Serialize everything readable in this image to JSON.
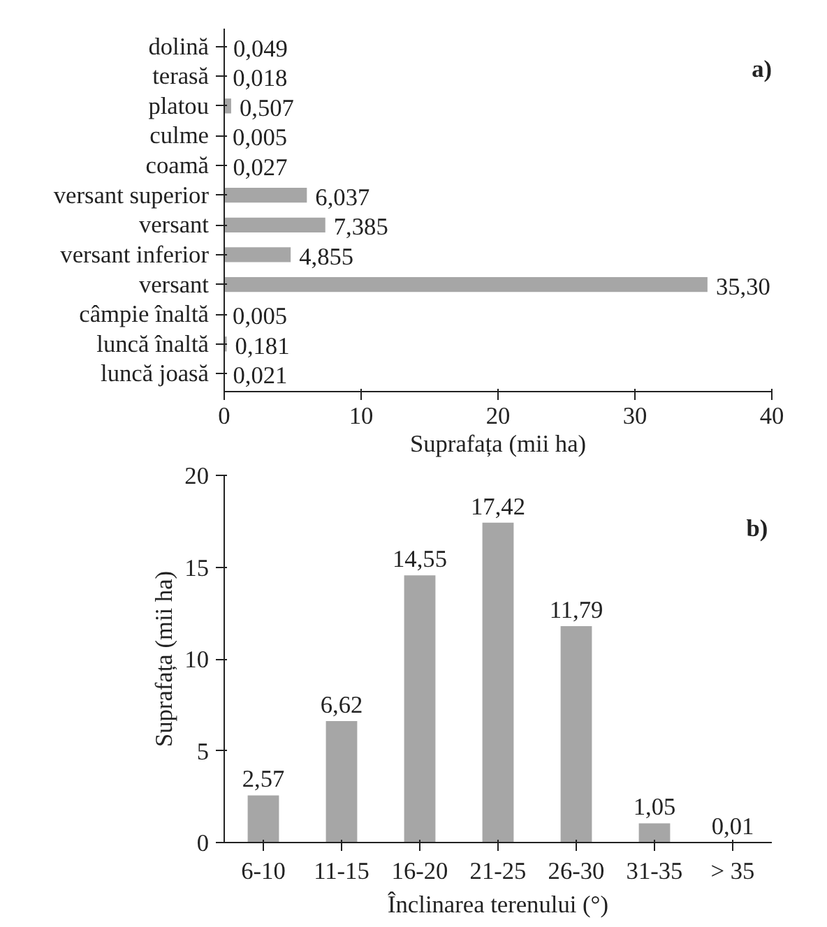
{
  "chart_data": [
    {
      "type": "bar",
      "orientation": "horizontal",
      "xlabel": "Suprafața (mii ha)",
      "annotations": [
        "a)"
      ],
      "categories": [
        "dolină",
        "terasă",
        "platou",
        "culme",
        "coamă",
        "versant superior",
        "versant",
        "versant inferior",
        "versant",
        "câmpie înaltă",
        "luncă înaltă",
        "luncă joasă"
      ],
      "values": [
        0.049,
        0.018,
        0.507,
        0.005,
        0.027,
        6.037,
        7.385,
        4.855,
        35.3,
        0.005,
        0.181,
        0.021
      ],
      "value_labels": [
        "0,049",
        "0,018",
        "0,507",
        "0,005",
        "0,027",
        "6,037",
        "7,385",
        "4,855",
        "35,30",
        "0,005",
        "0,181",
        "0,021"
      ],
      "color": "#a6a6a6",
      "xlim": [
        0,
        40
      ],
      "xticks": [
        0,
        10,
        20,
        30,
        40
      ],
      "grid": false
    },
    {
      "type": "bar",
      "xlabel": "Înclinarea terenului (°)",
      "ylabel": "Suprafața (mii ha)",
      "annotations": [
        "b)"
      ],
      "categories": [
        "6-10",
        "11-15",
        "16-20",
        "21-25",
        "26-30",
        "31-35",
        "> 35"
      ],
      "values": [
        2.57,
        6.62,
        14.55,
        17.42,
        11.79,
        1.05,
        0.01
      ],
      "value_labels": [
        "2,57",
        "6,62",
        "14,55",
        "17,42",
        "11,79",
        "1,05",
        "0,01"
      ],
      "color": "#a6a6a6",
      "ylim": [
        0,
        20
      ],
      "yticks": [
        0,
        5,
        10,
        15,
        20
      ],
      "grid": false
    }
  ]
}
